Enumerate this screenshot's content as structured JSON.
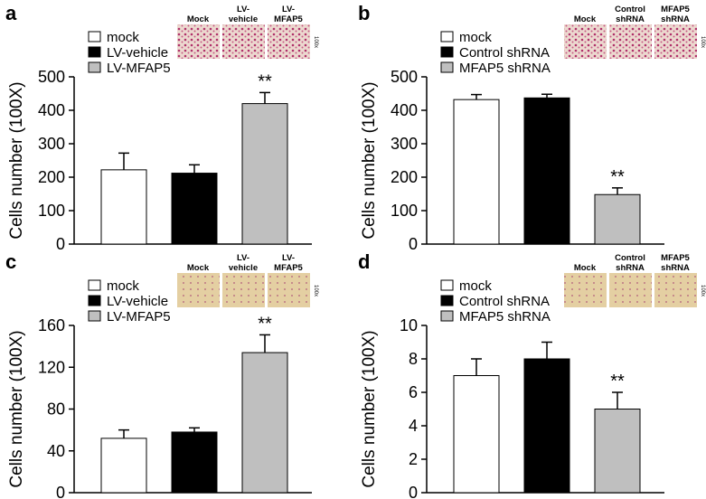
{
  "chart_data": [
    {
      "type": "bar",
      "panel": "a",
      "ylabel": "Cells number (100X)",
      "categories": [
        "mock",
        "LV-vehicle",
        "LV-MFAP5"
      ],
      "colors": [
        "#ffffff",
        "#000000",
        "#bfbfbf"
      ],
      "values": [
        222,
        212,
        420
      ],
      "errors": [
        50,
        25,
        33
      ],
      "annotation": "**",
      "image_labels": [
        [
          "Mock"
        ],
        [
          "LV-",
          "vehicle"
        ],
        [
          "LV-",
          "MFAP5"
        ]
      ],
      "magnification": "100x",
      "ylim": [
        0,
        500
      ],
      "yticks": [
        0,
        100,
        200,
        300,
        400,
        500
      ]
    },
    {
      "type": "bar",
      "panel": "b",
      "ylabel": "Cells number (100X)",
      "categories": [
        "mock",
        "Control shRNA",
        "MFAP5 shRNA"
      ],
      "colors": [
        "#ffffff",
        "#000000",
        "#bfbfbf"
      ],
      "values": [
        432,
        437,
        148
      ],
      "errors": [
        15,
        11,
        20
      ],
      "annotation": "**",
      "image_labels": [
        [
          "Mock"
        ],
        [
          "Control",
          "shRNA"
        ],
        [
          "MFAP5",
          "shRNA"
        ]
      ],
      "magnification": "100x",
      "ylim": [
        0,
        500
      ],
      "yticks": [
        0,
        100,
        200,
        300,
        400,
        500
      ]
    },
    {
      "type": "bar",
      "panel": "c",
      "ylabel": "Cells number (100X)",
      "categories": [
        "mock",
        "LV-vehicle",
        "LV-MFAP5"
      ],
      "colors": [
        "#ffffff",
        "#000000",
        "#bfbfbf"
      ],
      "values": [
        52,
        58,
        134
      ],
      "errors": [
        8,
        4,
        17
      ],
      "annotation": "**",
      "image_labels": [
        [
          "Mock"
        ],
        [
          "LV-",
          "vehicle"
        ],
        [
          "LV-",
          "MFAP5"
        ]
      ],
      "magnification": "100x",
      "ylim": [
        0,
        160
      ],
      "yticks": [
        0,
        40,
        80,
        120,
        160
      ]
    },
    {
      "type": "bar",
      "panel": "d",
      "ylabel": "Cells number (100X)",
      "categories": [
        "mock",
        "Control shRNA",
        "MFAP5 shRNA"
      ],
      "colors": [
        "#ffffff",
        "#000000",
        "#bfbfbf"
      ],
      "values": [
        7,
        8,
        5
      ],
      "errors": [
        1,
        1,
        1
      ],
      "annotation": "**",
      "image_labels": [
        [
          "Mock"
        ],
        [
          "Control",
          "shRNA"
        ],
        [
          "MFAP5",
          "shRNA"
        ]
      ],
      "magnification": "100x",
      "ylim": [
        0,
        10
      ],
      "yticks": [
        0,
        2,
        4,
        6,
        8,
        10
      ]
    }
  ]
}
